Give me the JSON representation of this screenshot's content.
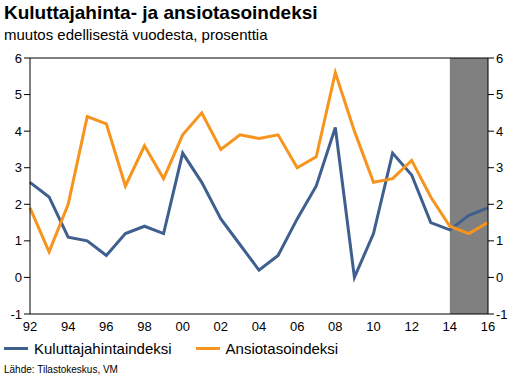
{
  "chart_data": {
    "type": "line",
    "title": "Kuluttajahinta- ja ansiotasoindeksi",
    "subtitle": "muutos edellisestä vuodesta, prosenttia",
    "source": "Lähde: Tilastokeskus, VM",
    "categories": [
      "92",
      null,
      "94",
      null,
      "96",
      null,
      "98",
      null,
      "00",
      null,
      "02",
      null,
      "04",
      null,
      "06",
      null,
      "08",
      null,
      "10",
      null,
      "12",
      null,
      "14",
      null,
      "16"
    ],
    "series": [
      {
        "name": "Kuluttajahintaindeksi",
        "color": "#3f5f8f",
        "values": [
          2.6,
          2.2,
          1.1,
          1.0,
          0.6,
          1.2,
          1.4,
          1.2,
          3.4,
          2.6,
          1.6,
          0.9,
          0.2,
          0.6,
          1.6,
          2.5,
          4.1,
          0.0,
          1.2,
          3.4,
          2.8,
          1.5,
          1.3,
          1.7,
          1.9
        ]
      },
      {
        "name": "Ansiotasoindeksi",
        "color": "#f7941d",
        "values": [
          1.9,
          0.7,
          2.0,
          4.4,
          4.2,
          2.5,
          3.6,
          2.7,
          3.9,
          4.5,
          3.5,
          3.9,
          3.8,
          3.9,
          3.0,
          3.3,
          5.6,
          4.0,
          2.6,
          2.7,
          3.2,
          2.2,
          1.4,
          1.2,
          1.5
        ]
      }
    ],
    "ylim": [
      -1,
      6
    ],
    "yticks": [
      -1,
      0,
      1,
      2,
      3,
      4,
      5,
      6
    ],
    "forecast_from": "14",
    "grid": false,
    "legend": "bottom"
  }
}
